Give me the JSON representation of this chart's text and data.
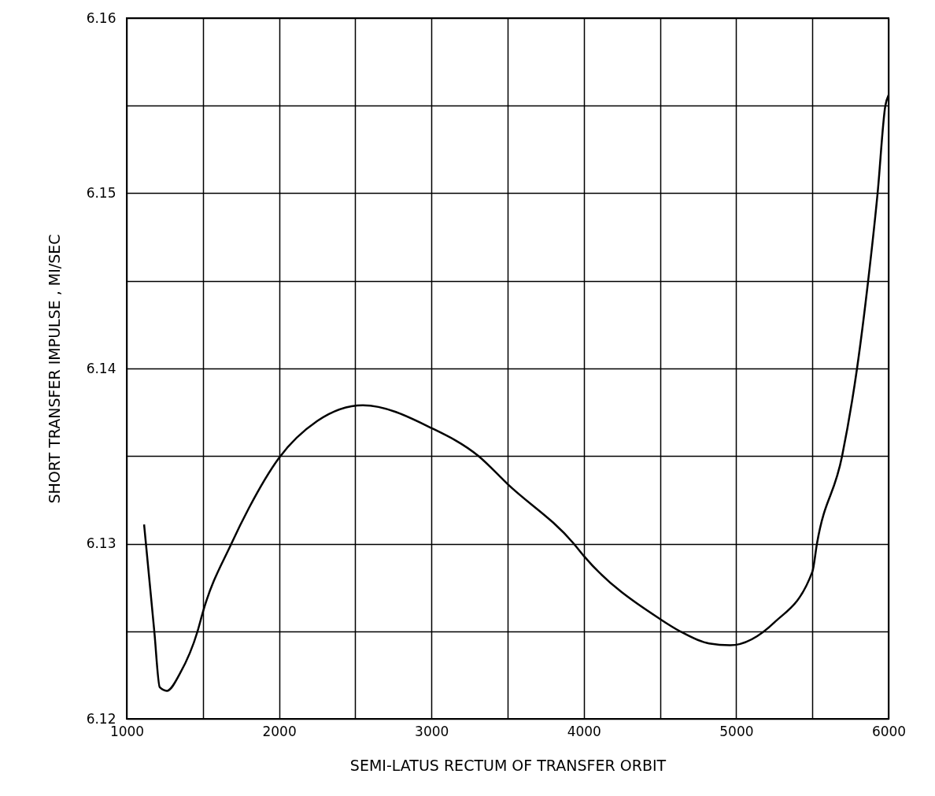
{
  "chart_data": {
    "type": "line",
    "xlabel": "SEMI-LATUS RECTUM OF TRANSFER ORBIT",
    "ylabel": "SHORT TRANSFER IMPULSE , MI/SEC",
    "x": [
      1114,
      1181,
      1217,
      1263,
      1350,
      1465,
      1500,
      1687,
      1800,
      2000,
      2250,
      2550,
      3000,
      3309,
      3500,
      3934,
      4000,
      4500,
      4631,
      4822,
      4960,
      5250,
      5500,
      5530,
      5695,
      5793,
      5866,
      5928,
      5979,
      6000
    ],
    "series": [
      {
        "color": "#000000",
        "values": [
          6.1311,
          6.125,
          6.1218,
          6.1216,
          6.1226,
          6.125,
          6.1261,
          6.13,
          6.132,
          6.1349,
          6.137,
          6.1379,
          6.1366,
          6.135,
          6.1334,
          6.13,
          6.1293,
          6.1257,
          6.125,
          6.1243,
          6.1242,
          6.1255,
          6.1284,
          6.13,
          6.135,
          6.14,
          6.145,
          6.15,
          6.155,
          6.1556
        ]
      }
    ],
    "xlim": [
      1000,
      6000
    ],
    "ylim": [
      6.12,
      6.16
    ],
    "xticks": [
      1000,
      {
        "value": 1500,
        "label": null
      },
      2000,
      {
        "value": 2500,
        "label": null
      },
      3000,
      {
        "value": 3500,
        "label": null
      },
      4000,
      {
        "value": 4500,
        "label": null
      },
      5000,
      {
        "value": 5500,
        "label": null
      },
      6000
    ],
    "yticks": [
      {
        "value": 6.12,
        "label": "6.12"
      },
      {
        "value": 6.125,
        "label": null
      },
      {
        "value": 6.13,
        "label": "6.13"
      },
      {
        "value": 6.135,
        "label": null
      },
      {
        "value": 6.14,
        "label": "6.14"
      },
      {
        "value": 6.145,
        "label": null
      },
      {
        "value": 6.15,
        "label": "6.15"
      },
      {
        "value": 6.155,
        "label": null
      },
      {
        "value": 6.16,
        "label": "6.16"
      }
    ],
    "grid": true,
    "marker": "none",
    "line_style": "solid"
  }
}
